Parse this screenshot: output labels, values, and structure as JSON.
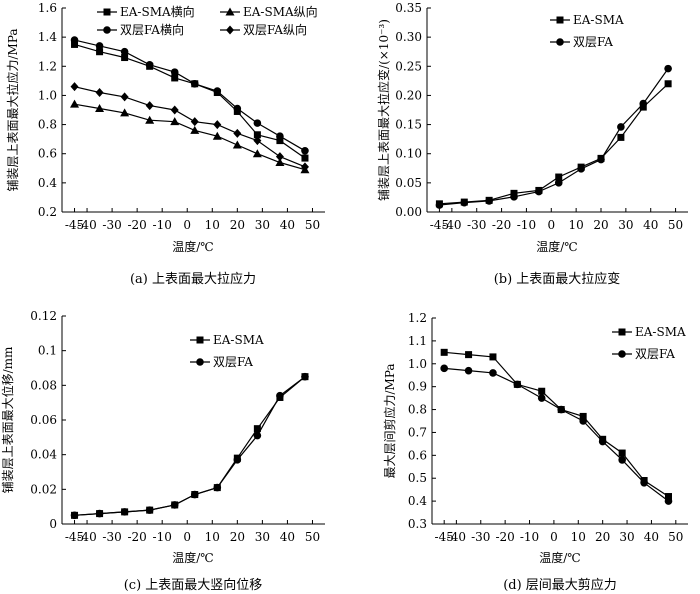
{
  "chart_data": [
    {
      "id": "a",
      "type": "line",
      "caption": "(a) 上表面最大拉应力",
      "xlabel": "温度/℃",
      "ylabel": "铺装层上表面最大拉应力/MPa",
      "categories": [
        "-45",
        "-40",
        "-30",
        "-20",
        "-10",
        "0",
        "10",
        "20",
        "30",
        "40",
        "50"
      ],
      "x": [
        -45,
        -40,
        -30,
        -20,
        -10,
        0,
        10,
        20,
        30,
        40,
        50
      ],
      "ylim": [
        0.2,
        1.6
      ],
      "yticks": [
        "0.2",
        "0.4",
        "0.6",
        "0.8",
        "1.0",
        "1.2",
        "1.4",
        "1.6"
      ],
      "legend_position": "top",
      "series": [
        {
          "name": "EA-SMA横向",
          "marker": "square",
          "x": [
            -45,
            -35,
            -25,
            -15,
            -5,
            3,
            12,
            20,
            28,
            37,
            47
          ],
          "values": [
            1.35,
            1.3,
            1.26,
            1.2,
            1.12,
            1.08,
            1.02,
            0.89,
            0.73,
            0.69,
            0.57
          ]
        },
        {
          "name": "双层FA横向",
          "marker": "circle",
          "x": [
            -45,
            -35,
            -25,
            -15,
            -5,
            3,
            12,
            20,
            28,
            37,
            47
          ],
          "values": [
            1.38,
            1.34,
            1.3,
            1.21,
            1.16,
            1.08,
            1.03,
            0.91,
            0.81,
            0.72,
            0.62
          ]
        },
        {
          "name": "EA-SMA纵向",
          "marker": "triangle",
          "x": [
            -45,
            -35,
            -25,
            -15,
            -5,
            3,
            12,
            20,
            28,
            37,
            47
          ],
          "values": [
            0.94,
            0.91,
            0.88,
            0.83,
            0.82,
            0.76,
            0.72,
            0.66,
            0.6,
            0.54,
            0.49
          ]
        },
        {
          "name": "双层FA纵向",
          "marker": "diamond",
          "x": [
            -45,
            -35,
            -25,
            -15,
            -5,
            3,
            12,
            20,
            28,
            37,
            47
          ],
          "values": [
            1.06,
            1.02,
            0.99,
            0.93,
            0.9,
            0.82,
            0.8,
            0.74,
            0.69,
            0.58,
            0.51
          ]
        }
      ]
    },
    {
      "id": "b",
      "type": "line",
      "caption": "(b) 上表面最大拉应变",
      "xlabel": "温度/℃",
      "ylabel": "铺装层上表面最大拉应变/(×10⁻³)",
      "categories": [
        "-45",
        "-40",
        "-30",
        "-20",
        "-10",
        "0",
        "10",
        "20",
        "30",
        "40",
        "50"
      ],
      "x": [
        -45,
        -40,
        -30,
        -20,
        -10,
        0,
        10,
        20,
        30,
        40,
        50
      ],
      "ylim": [
        0,
        0.35
      ],
      "yticks": [
        "0.00",
        "0.05",
        "0.10",
        "0.15",
        "0.20",
        "0.25",
        "0.30",
        "0.35"
      ],
      "legend_position": "top",
      "series": [
        {
          "name": "EA-SMA",
          "marker": "square",
          "x": [
            -45,
            -35,
            -25,
            -15,
            -5,
            3,
            12,
            20,
            28,
            37,
            47
          ],
          "values": [
            0.014,
            0.017,
            0.02,
            0.032,
            0.037,
            0.06,
            0.077,
            0.092,
            0.128,
            0.18,
            0.22
          ]
        },
        {
          "name": "双层FA",
          "marker": "circle",
          "x": [
            -45,
            -35,
            -25,
            -15,
            -5,
            3,
            12,
            20,
            28,
            37,
            47
          ],
          "values": [
            0.012,
            0.016,
            0.019,
            0.026,
            0.035,
            0.05,
            0.074,
            0.09,
            0.146,
            0.186,
            0.246
          ]
        }
      ]
    },
    {
      "id": "c",
      "type": "line",
      "caption": "(c) 上表面最大竖向位移",
      "xlabel": "温度/℃",
      "ylabel": "铺装层上表面最大位移/mm",
      "categories": [
        "-45",
        "-40",
        "-30",
        "-20",
        "-10",
        "0",
        "10",
        "20",
        "30",
        "40",
        "50"
      ],
      "x": [
        -45,
        -40,
        -30,
        -20,
        -10,
        0,
        10,
        20,
        30,
        40,
        50
      ],
      "ylim": [
        0,
        0.12
      ],
      "yticks": [
        "0",
        "0.02",
        "0.04",
        "0.06",
        "0.08",
        "0.1",
        "0.12"
      ],
      "legend_position": "top-left",
      "series": [
        {
          "name": "EA-SMA",
          "marker": "square",
          "x": [
            -45,
            -35,
            -25,
            -15,
            -5,
            3,
            12,
            20,
            28,
            37,
            47
          ],
          "values": [
            0.005,
            0.006,
            0.007,
            0.008,
            0.011,
            0.017,
            0.021,
            0.038,
            0.055,
            0.073,
            0.085
          ]
        },
        {
          "name": "双层FA",
          "marker": "circle",
          "x": [
            -45,
            -35,
            -25,
            -15,
            -5,
            3,
            12,
            20,
            28,
            37,
            47
          ],
          "values": [
            0.005,
            0.006,
            0.007,
            0.008,
            0.011,
            0.017,
            0.021,
            0.037,
            0.051,
            0.074,
            0.085
          ]
        }
      ]
    },
    {
      "id": "d",
      "type": "line",
      "caption": "(d) 层间最大剪应力",
      "xlabel": "温度/℃",
      "ylabel": "最大层间剪应力/MPa",
      "categories": [
        "-45",
        "-40",
        "-30",
        "-20",
        "-10",
        "0",
        "10",
        "20",
        "30",
        "40",
        "50"
      ],
      "x": [
        -45,
        -40,
        -30,
        -20,
        -10,
        0,
        10,
        20,
        30,
        40,
        50
      ],
      "ylim": [
        0.3,
        1.2
      ],
      "yticks": [
        "0.3",
        "0.4",
        "0.5",
        "0.6",
        "0.7",
        "0.8",
        "0.9",
        "1.0",
        "1.1",
        "1.2"
      ],
      "legend_position": "top-right",
      "series": [
        {
          "name": "EA-SMA",
          "marker": "square",
          "x": [
            -45,
            -35,
            -25,
            -15,
            -5,
            3,
            12,
            20,
            28,
            37,
            47
          ],
          "values": [
            1.05,
            1.04,
            1.03,
            0.91,
            0.88,
            0.8,
            0.77,
            0.67,
            0.61,
            0.49,
            0.42
          ]
        },
        {
          "name": "双层FA",
          "marker": "circle",
          "x": [
            -45,
            -35,
            -25,
            -15,
            -5,
            3,
            12,
            20,
            28,
            37,
            47
          ],
          "values": [
            0.98,
            0.97,
            0.96,
            0.91,
            0.85,
            0.8,
            0.75,
            0.66,
            0.58,
            0.48,
            0.4
          ]
        }
      ]
    }
  ]
}
